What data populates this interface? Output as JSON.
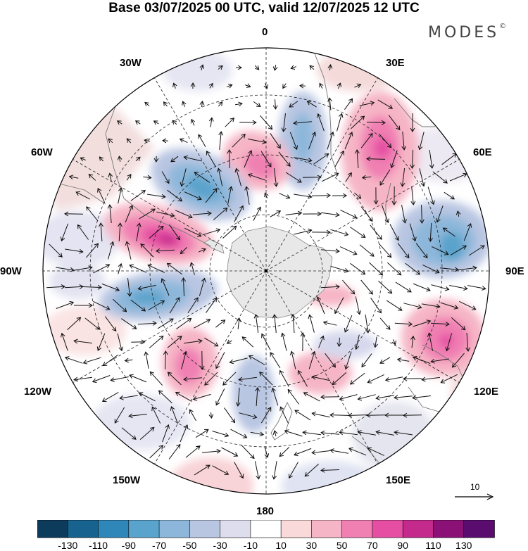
{
  "title": "Base 03/07/2025 00 UTC, valid 12/07/2025 12 UTC",
  "brand": {
    "text": "MODES",
    "mark": "©"
  },
  "map": {
    "projection": "south-polar-stereographic",
    "longitude_labels": {
      "top": "0",
      "bottom": "180",
      "left": "90W",
      "right": "90E",
      "w30": "30W",
      "e30": "30E",
      "w60": "60W",
      "e60": "60E",
      "w120": "120W",
      "e120": "120E",
      "w150": "150W",
      "e150": "150E"
    }
  },
  "reference_vector": {
    "label": "10"
  },
  "colorbar": {
    "colors": [
      "#0d3b5c",
      "#17628e",
      "#2f86b8",
      "#5aa3cc",
      "#8db7da",
      "#b9c6e2",
      "#dedded",
      "#ffffff",
      "#f9d9da",
      "#f6b5c6",
      "#f07fb2",
      "#e54ea3",
      "#c42a8c",
      "#8c1177",
      "#5a0c6f"
    ],
    "labels": [
      "-130",
      "-110",
      "-90",
      "-70",
      "-50",
      "-30",
      "-10",
      "10",
      "30",
      "50",
      "70",
      "90",
      "110",
      "130"
    ]
  }
}
